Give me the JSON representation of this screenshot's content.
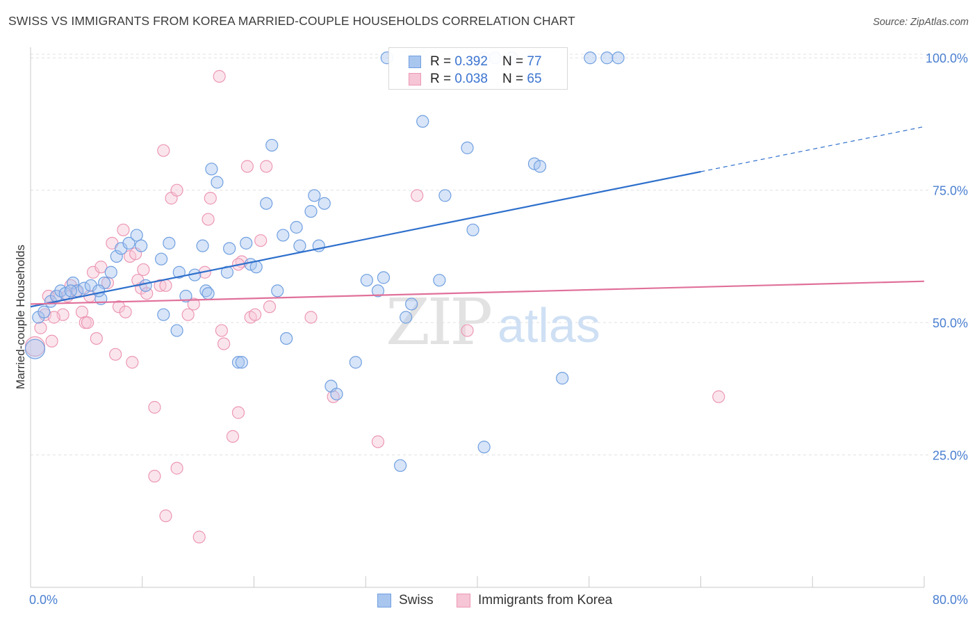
{
  "title": "SWISS VS IMMIGRANTS FROM KOREA MARRIED-COUPLE HOUSEHOLDS CORRELATION CHART",
  "source": "Source: ZipAtlas.com",
  "colors": {
    "swiss": "#6f9fe0",
    "swiss_fill": "#a9c6ef",
    "swiss_line": "#2d6fcc",
    "korea": "#ec97b4",
    "korea_fill": "#f6c5d6",
    "korea_line": "#e0709a",
    "tick_label": "#4a7fd0",
    "grid": "#e0e0e0"
  },
  "legend": {
    "rows": [
      {
        "r_label": "R = ",
        "r_value": "0.392",
        "n_label": "N = ",
        "n_value": "77"
      },
      {
        "r_label": "R = ",
        "r_value": "0.038",
        "n_label": "N = ",
        "n_value": "65"
      }
    ]
  },
  "bottom_legend": {
    "swiss": "Swiss",
    "korea": "Immigrants from Korea"
  },
  "watermark": {
    "zip": "ZIP",
    "atlas": "atlas"
  },
  "chart_data": {
    "type": "scatter",
    "title": "SWISS VS IMMIGRANTS FROM KOREA MARRIED-COUPLE HOUSEHOLDS CORRELATION CHART",
    "xlabel": "",
    "ylabel": "Married-couple Households",
    "xlim": [
      0,
      80
    ],
    "ylim": [
      0,
      102
    ],
    "x_tick_labels": [
      "0.0%",
      "80.0%"
    ],
    "y_ticks": [
      25,
      50,
      75,
      100
    ],
    "y_tick_labels": [
      "25.0%",
      "50.0%",
      "75.0%",
      "100.0%"
    ],
    "grid": true,
    "legend_position": "top-center",
    "series": [
      {
        "name": "Swiss",
        "r": 0.392,
        "n": 77,
        "trend": {
          "x0": 0,
          "y0": 53.0,
          "x1": 60,
          "y1": 78.5,
          "dashed_to_x": 80,
          "dashed_to_y": 87
        },
        "points": [
          [
            0.4,
            45
          ],
          [
            0.7,
            51
          ],
          [
            1.2,
            52
          ],
          [
            1.8,
            54
          ],
          [
            2.3,
            55
          ],
          [
            2.7,
            56
          ],
          [
            3.1,
            55.5
          ],
          [
            3.8,
            57.5
          ],
          [
            4.2,
            56
          ],
          [
            4.8,
            56.5
          ],
          [
            5.4,
            57
          ],
          [
            6.3,
            54.5
          ],
          [
            6.6,
            57.5
          ],
          [
            7.2,
            59.5
          ],
          [
            7.7,
            62.5
          ],
          [
            8.1,
            64
          ],
          [
            8.8,
            65
          ],
          [
            9.5,
            66.5
          ],
          [
            9.9,
            64.5
          ],
          [
            10.3,
            57
          ],
          [
            11.7,
            62
          ],
          [
            11.9,
            51.5
          ],
          [
            12.4,
            65
          ],
          [
            13.1,
            48.5
          ],
          [
            13.3,
            59.5
          ],
          [
            13.9,
            55
          ],
          [
            14.7,
            59
          ],
          [
            15.4,
            64.5
          ],
          [
            15.7,
            56
          ],
          [
            15.9,
            55.5
          ],
          [
            16.2,
            79
          ],
          [
            16.7,
            76.5
          ],
          [
            17.6,
            59.5
          ],
          [
            17.8,
            64
          ],
          [
            18.6,
            42.5
          ],
          [
            18.9,
            42.5
          ],
          [
            19.3,
            65
          ],
          [
            19.7,
            61
          ],
          [
            20.2,
            60.5
          ],
          [
            21.1,
            72.5
          ],
          [
            21.6,
            83.5
          ],
          [
            22.1,
            56
          ],
          [
            22.6,
            66.5
          ],
          [
            22.9,
            47
          ],
          [
            23.8,
            68
          ],
          [
            24.1,
            64.5
          ],
          [
            25.1,
            71
          ],
          [
            25.4,
            74
          ],
          [
            25.8,
            64.5
          ],
          [
            26.3,
            72.5
          ],
          [
            26.9,
            38
          ],
          [
            27.4,
            36.5
          ],
          [
            29.1,
            42.5
          ],
          [
            30.1,
            58
          ],
          [
            31.1,
            56
          ],
          [
            31.6,
            58.5
          ],
          [
            31.9,
            100
          ],
          [
            33.6,
            51
          ],
          [
            34.1,
            53.5
          ],
          [
            35.1,
            88
          ],
          [
            36.6,
            58
          ],
          [
            37.1,
            74
          ],
          [
            39.1,
            83
          ],
          [
            39.6,
            67.5
          ],
          [
            40.6,
            100
          ],
          [
            40.6,
            26.5
          ],
          [
            41.6,
            100
          ],
          [
            43.1,
            100
          ],
          [
            45.1,
            80
          ],
          [
            45.6,
            79.5
          ],
          [
            47.6,
            39.5
          ],
          [
            50.1,
            100
          ],
          [
            51.6,
            100
          ],
          [
            52.6,
            100
          ],
          [
            33.1,
            23
          ],
          [
            3.6,
            56
          ],
          [
            6.1,
            56
          ]
        ]
      },
      {
        "name": "Immigrants from Korea",
        "r": 0.038,
        "n": 65,
        "trend": {
          "x0": 0,
          "y0": 53.5,
          "x1": 80,
          "y1": 57.8
        },
        "points": [
          [
            0.4,
            45.5
          ],
          [
            0.9,
            49
          ],
          [
            1.3,
            51.5
          ],
          [
            1.9,
            46.5
          ],
          [
            2.4,
            55
          ],
          [
            2.9,
            51.5
          ],
          [
            3.3,
            55
          ],
          [
            4.1,
            56
          ],
          [
            4.6,
            52
          ],
          [
            4.9,
            50
          ],
          [
            5.3,
            55
          ],
          [
            5.6,
            59.5
          ],
          [
            5.9,
            47
          ],
          [
            6.3,
            60.5
          ],
          [
            6.9,
            57.5
          ],
          [
            7.3,
            65
          ],
          [
            7.6,
            44
          ],
          [
            7.9,
            53
          ],
          [
            8.3,
            67.5
          ],
          [
            8.5,
            52
          ],
          [
            8.9,
            62.5
          ],
          [
            9.1,
            42.5
          ],
          [
            9.4,
            63
          ],
          [
            9.9,
            56.5
          ],
          [
            10.1,
            60
          ],
          [
            10.4,
            55.5
          ],
          [
            11.1,
            34
          ],
          [
            11.6,
            57
          ],
          [
            11.9,
            82.5
          ],
          [
            12.6,
            73.5
          ],
          [
            13.1,
            75
          ],
          [
            14.1,
            51.5
          ],
          [
            14.6,
            53.5
          ],
          [
            15.1,
            9.5
          ],
          [
            15.6,
            59.5
          ],
          [
            15.9,
            69.5
          ],
          [
            16.1,
            73.5
          ],
          [
            16.9,
            96.5
          ],
          [
            17.1,
            48.5
          ],
          [
            17.3,
            46
          ],
          [
            18.1,
            28.5
          ],
          [
            18.6,
            33
          ],
          [
            18.9,
            61.5
          ],
          [
            19.4,
            79.5
          ],
          [
            19.7,
            51
          ],
          [
            20.1,
            51.5
          ],
          [
            20.6,
            65.5
          ],
          [
            21.1,
            79.5
          ],
          [
            21.4,
            53
          ],
          [
            25.1,
            51
          ],
          [
            27.1,
            36
          ],
          [
            31.1,
            27.5
          ],
          [
            34.6,
            74
          ],
          [
            39.1,
            48.5
          ],
          [
            61.6,
            36
          ],
          [
            11.1,
            21
          ],
          [
            13.1,
            22.5
          ],
          [
            12.1,
            13.5
          ],
          [
            1.6,
            55
          ],
          [
            2.1,
            51
          ],
          [
            3.6,
            57
          ],
          [
            5.1,
            50
          ],
          [
            9.6,
            58
          ],
          [
            12.1,
            57
          ],
          [
            18.6,
            61
          ]
        ]
      }
    ]
  }
}
